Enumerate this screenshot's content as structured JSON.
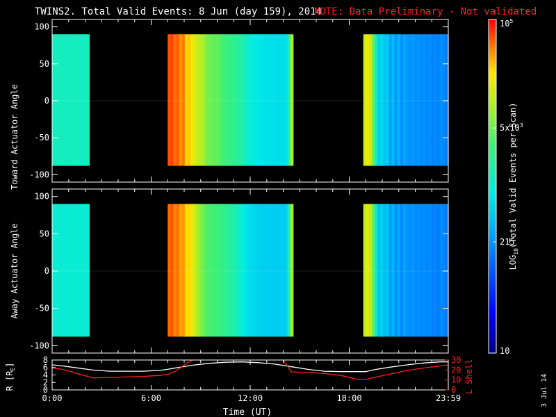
{
  "header": {
    "title": "TWINS2. Total Valid Events:  8 Jun (day 159), 2014",
    "note": "NOTE: Data Preliminary - Not validated"
  },
  "side_date": "3 Jul 14",
  "colors": {
    "background": "#000000",
    "axes": "#ffffff",
    "note": "#ff2020",
    "r_line": "#ffffff",
    "lshell_line": "#ff2020"
  },
  "colorbar": {
    "label": "LOG10(Total Valid Events per Scan)",
    "label_main": "LOG",
    "label_sub": "10",
    "label_rest": "(Total Valid Events per Scan)",
    "ticks": [
      {
        "value": 10,
        "label": "10"
      },
      {
        "value": 215,
        "label": "215"
      },
      {
        "value": 5000,
        "label_base": "5x10",
        "label_exp": "3"
      },
      {
        "value": 100000,
        "label_base": "10",
        "label_exp": "5"
      }
    ],
    "range": [
      10,
      100000
    ],
    "scale": "log",
    "colormap": "rainbow"
  },
  "chart_data": [
    {
      "type": "heatmap",
      "name": "toward",
      "ylabel": "Toward Actuator Angle",
      "xlim": [
        0,
        24
      ],
      "ylim": [
        -110,
        110
      ],
      "angle_range": [
        -88,
        90
      ],
      "yticks": [
        100,
        50,
        0,
        -50,
        -100
      ],
      "value_scale": "log10",
      "blocks": [
        {
          "t_start": 0.0,
          "t_end": 2.25,
          "cols": [
            3.12,
            3.1,
            3.14,
            3.12,
            3.1,
            3.13,
            3.11,
            3.12,
            3.14,
            3.1,
            3.12,
            3.13
          ]
        },
        {
          "t_start": 7.0,
          "t_end": 14.6,
          "cols": [
            4.78,
            4.82,
            4.7,
            4.75,
            4.6,
            4.68,
            4.4,
            4.45,
            4.3,
            4.2,
            4.08,
            4.02,
            3.98,
            3.75,
            3.72,
            3.68,
            3.62,
            3.66,
            3.55,
            3.5,
            3.46,
            3.42,
            3.4,
            3.35,
            3.3,
            3.25,
            3.2,
            3.1,
            3.0,
            2.98,
            2.95,
            2.92,
            2.9,
            2.88,
            2.86,
            2.87,
            2.84,
            2.85,
            2.83,
            2.84,
            2.82,
            2.86,
            3.25,
            3.95
          ]
        },
        {
          "t_start": 18.85,
          "t_end": 24.0,
          "cols": [
            4.1,
            4.3,
            4.12,
            3.7,
            3.1,
            2.7,
            2.8,
            2.65,
            2.72,
            2.4,
            2.6,
            2.35,
            2.55,
            2.3,
            2.45,
            2.36,
            2.32,
            2.38,
            2.3,
            2.34,
            2.28,
            2.32,
            2.26,
            2.3,
            2.24,
            2.28,
            2.22,
            2.3,
            2.26,
            2.2
          ]
        }
      ]
    },
    {
      "type": "heatmap",
      "name": "away",
      "ylabel": "Away Actuator Angle",
      "xlim": [
        0,
        24
      ],
      "ylim": [
        -110,
        110
      ],
      "angle_range": [
        -88,
        90
      ],
      "yticks": [
        100,
        50,
        0,
        -50,
        -100
      ],
      "value_scale": "log10",
      "blocks": [
        {
          "t_start": 0.0,
          "t_end": 2.25,
          "cols": [
            3.02,
            3.0,
            3.04,
            3.01,
            3.0,
            3.03,
            3.02,
            3.0,
            3.03,
            3.01,
            3.02,
            3.04
          ]
        },
        {
          "t_start": 7.0,
          "t_end": 14.6,
          "cols": [
            4.72,
            4.78,
            4.64,
            4.7,
            4.55,
            4.6,
            4.38,
            4.4,
            4.26,
            4.12,
            3.95,
            3.8,
            3.7,
            3.58,
            3.55,
            3.5,
            3.46,
            3.48,
            3.42,
            3.38,
            3.34,
            3.3,
            3.26,
            3.2,
            3.12,
            3.05,
            2.98,
            2.9,
            2.82,
            2.8,
            2.78,
            2.76,
            2.74,
            2.73,
            2.72,
            2.73,
            2.71,
            2.72,
            2.7,
            2.72,
            2.71,
            2.74,
            3.2,
            3.92
          ]
        },
        {
          "t_start": 18.85,
          "t_end": 24.0,
          "cols": [
            4.05,
            4.25,
            4.05,
            3.65,
            3.05,
            2.65,
            2.75,
            2.6,
            2.68,
            2.38,
            2.55,
            2.32,
            2.5,
            2.28,
            2.42,
            2.33,
            2.3,
            2.36,
            2.28,
            2.31,
            2.26,
            2.3,
            2.24,
            2.28,
            2.22,
            2.26,
            2.2,
            2.28,
            2.24,
            2.18
          ]
        }
      ]
    },
    {
      "type": "line",
      "name": "orbit",
      "xlabel": "Time (UT)",
      "ylabel_left": "R [RE]",
      "ylabel_left_main": "R [R",
      "ylabel_left_sub": "E",
      "ylabel_left_end": "]",
      "ylabel_right": "L Shell",
      "xlim": [
        0,
        24
      ],
      "xticks": [
        0,
        6,
        12,
        18,
        24
      ],
      "xtick_labels": [
        "0:00",
        "6:00",
        "12:00",
        "18:00",
        "23:59"
      ],
      "ylim_left": [
        0,
        8
      ],
      "yticks_left": [
        0,
        2,
        4,
        6,
        8
      ],
      "ylim_right": [
        0,
        30
      ],
      "yticks_right": [
        0,
        10,
        20,
        30
      ],
      "series": [
        {
          "key": "r",
          "axis": "left",
          "x": [
            0,
            0.5,
            1,
            1.5,
            2.5,
            3.5,
            4.5,
            5.5,
            6.5,
            7.0,
            7.5,
            8.5,
            9.5,
            10.5,
            11.5,
            12.5,
            13.5,
            14.5,
            15.5,
            16.5,
            17.5,
            18.5,
            19.0,
            19.5,
            20.5,
            21.5,
            22.5,
            23.5,
            24.0
          ],
          "y": [
            6.7,
            6.5,
            6.2,
            5.9,
            5.3,
            5.0,
            5.0,
            5.0,
            5.2,
            5.5,
            5.9,
            6.6,
            7.1,
            7.4,
            7.5,
            7.3,
            6.9,
            6.2,
            5.5,
            5.0,
            4.9,
            4.9,
            4.9,
            5.4,
            6.1,
            6.7,
            7.2,
            7.5,
            7.5
          ]
        },
        {
          "key": "lshell",
          "axis": "right",
          "x": [
            0,
            0.5,
            1,
            1.5,
            2.5,
            3.5,
            4.5,
            5.5,
            6.5,
            7.0,
            7.5,
            8.0,
            8.5,
            9.0,
            14.0,
            14.5,
            15.5,
            16.5,
            17.5,
            18.5,
            19.0,
            19.5,
            20.5,
            21.5,
            22.5,
            23.5,
            24.0
          ],
          "y": [
            22.0,
            21.0,
            19.0,
            16.5,
            12.0,
            12.5,
            13.0,
            13.5,
            14.5,
            15.5,
            19.0,
            25.0,
            30.0,
            null,
            30.0,
            18.0,
            17.5,
            16.5,
            14.5,
            10.5,
            10.5,
            12.5,
            16.0,
            19.5,
            22.0,
            24.0,
            25.0
          ]
        }
      ]
    }
  ]
}
